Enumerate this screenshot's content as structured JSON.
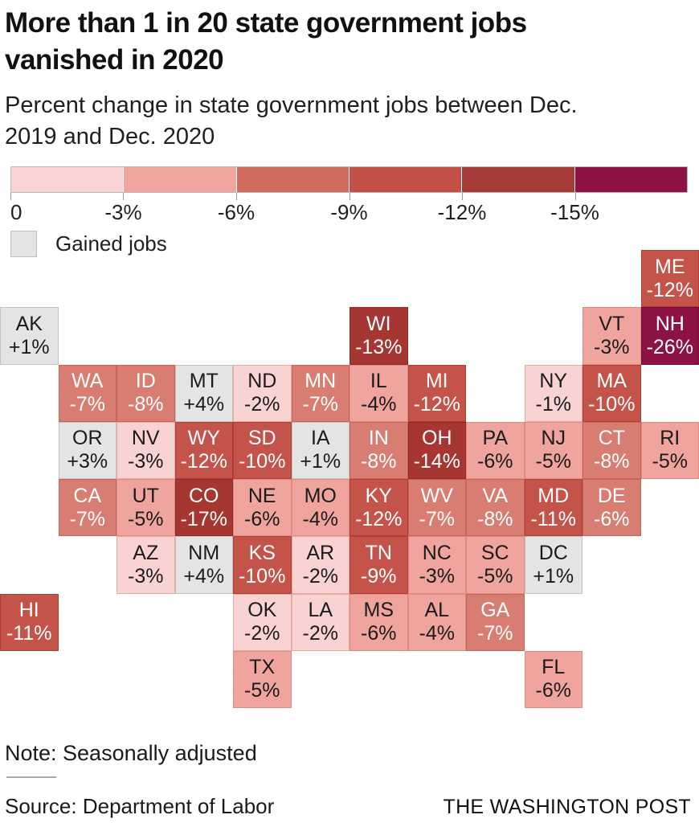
{
  "header": {
    "title": "More than 1 in 20 state government jobs\nvanished in 2020",
    "subtitle": "Percent change in state government jobs between Dec.\n2019 and Dec. 2020"
  },
  "legend": {
    "tick_labels": [
      "0",
      "-3%",
      "-6%",
      "-9%",
      "-12%",
      "-15%"
    ],
    "band_colors": [
      "#f9d4d2",
      "#f0a69f",
      "#cf6c5e",
      "#c35148",
      "#a63b37",
      "#8e1245"
    ],
    "band_ranges": [
      "0 to -3%",
      "-3% to -6%",
      "-6% to -9%",
      "-9% to -12%",
      "-12% to -15%",
      "worse than -15%"
    ],
    "gained_label": "Gained jobs",
    "gained_color": "#e4e4e4"
  },
  "palette": {
    "bands": [
      {
        "fill": "#e4e4e4",
        "border": "#c3c3c3",
        "text": "#1b1b1b"
      },
      {
        "fill": "#f8d3d1",
        "border": "#e9a8a3",
        "text": "#1b1b1b"
      },
      {
        "fill": "#efa49d",
        "border": "#e08a82",
        "text": "#1b1b1b"
      },
      {
        "fill": "#d87d72",
        "border": "#c66256",
        "text": "#ffffff"
      },
      {
        "fill": "#c4534a",
        "border": "#b03d36",
        "text": "#ffffff"
      },
      {
        "fill": "#a53632",
        "border": "#8f2a27",
        "text": "#ffffff"
      },
      {
        "fill": "#8c1144",
        "border": "#770c39",
        "text": "#ffffff"
      }
    ]
  },
  "footer": {
    "note": "Note: Seasonally adjusted",
    "source": "Source: Department of Labor",
    "credit": "THE WASHINGTON POST"
  },
  "chart_data": {
    "type": "heatmap",
    "subtype": "state-tile-grid-map",
    "title": "More than 1 in 20 state government jobs vanished in 2020",
    "value_unit": "percent change in state government jobs, Dec. 2019 to Dec. 2020",
    "grid": {
      "columns": 12,
      "rows": 8
    },
    "band_meaning": [
      "gained jobs (gray)",
      "0 to -3%",
      "-3% to -6%",
      "-6% to -9%",
      "-9% to -12%",
      "-12% to -15%",
      "worse than -15%"
    ],
    "states": [
      {
        "abbr": "ME",
        "label": "-12%",
        "value": -12,
        "row": 0,
        "col": 11,
        "band": 4
      },
      {
        "abbr": "AK",
        "label": "+1%",
        "value": 1,
        "row": 1,
        "col": 0,
        "band": 0
      },
      {
        "abbr": "WI",
        "label": "-13%",
        "value": -13,
        "row": 1,
        "col": 6,
        "band": 5
      },
      {
        "abbr": "VT",
        "label": "-3%",
        "value": -3,
        "row": 1,
        "col": 10,
        "band": 2
      },
      {
        "abbr": "NH",
        "label": "-26%",
        "value": -26,
        "row": 1,
        "col": 11,
        "band": 6
      },
      {
        "abbr": "WA",
        "label": "-7%",
        "value": -7,
        "row": 2,
        "col": 1,
        "band": 3
      },
      {
        "abbr": "ID",
        "label": "-8%",
        "value": -8,
        "row": 2,
        "col": 2,
        "band": 3
      },
      {
        "abbr": "MT",
        "label": "+4%",
        "value": 4,
        "row": 2,
        "col": 3,
        "band": 0
      },
      {
        "abbr": "ND",
        "label": "-2%",
        "value": -2,
        "row": 2,
        "col": 4,
        "band": 1
      },
      {
        "abbr": "MN",
        "label": "-7%",
        "value": -7,
        "row": 2,
        "col": 5,
        "band": 3
      },
      {
        "abbr": "IL",
        "label": "-4%",
        "value": -4,
        "row": 2,
        "col": 6,
        "band": 2
      },
      {
        "abbr": "MI",
        "label": "-12%",
        "value": -12,
        "row": 2,
        "col": 7,
        "band": 4
      },
      {
        "abbr": "NY",
        "label": "-1%",
        "value": -1,
        "row": 2,
        "col": 9,
        "band": 1
      },
      {
        "abbr": "MA",
        "label": "-10%",
        "value": -10,
        "row": 2,
        "col": 10,
        "band": 4
      },
      {
        "abbr": "OR",
        "label": "+3%",
        "value": 3,
        "row": 3,
        "col": 1,
        "band": 0
      },
      {
        "abbr": "NV",
        "label": "-3%",
        "value": -3,
        "row": 3,
        "col": 2,
        "band": 1
      },
      {
        "abbr": "WY",
        "label": "-12%",
        "value": -12,
        "row": 3,
        "col": 3,
        "band": 4
      },
      {
        "abbr": "SD",
        "label": "-10%",
        "value": -10,
        "row": 3,
        "col": 4,
        "band": 4
      },
      {
        "abbr": "IA",
        "label": "+1%",
        "value": 1,
        "row": 3,
        "col": 5,
        "band": 0
      },
      {
        "abbr": "IN",
        "label": "-8%",
        "value": -8,
        "row": 3,
        "col": 6,
        "band": 3
      },
      {
        "abbr": "OH",
        "label": "-14%",
        "value": -14,
        "row": 3,
        "col": 7,
        "band": 5
      },
      {
        "abbr": "PA",
        "label": "-6%",
        "value": -6,
        "row": 3,
        "col": 8,
        "band": 2
      },
      {
        "abbr": "NJ",
        "label": "-5%",
        "value": -5,
        "row": 3,
        "col": 9,
        "band": 2
      },
      {
        "abbr": "CT",
        "label": "-8%",
        "value": -8,
        "row": 3,
        "col": 10,
        "band": 3
      },
      {
        "abbr": "RI",
        "label": "-5%",
        "value": -5,
        "row": 3,
        "col": 11,
        "band": 2
      },
      {
        "abbr": "CA",
        "label": "-7%",
        "value": -7,
        "row": 4,
        "col": 1,
        "band": 3
      },
      {
        "abbr": "UT",
        "label": "-5%",
        "value": -5,
        "row": 4,
        "col": 2,
        "band": 2
      },
      {
        "abbr": "CO",
        "label": "-17%",
        "value": -17,
        "row": 4,
        "col": 3,
        "band": 5
      },
      {
        "abbr": "NE",
        "label": "-6%",
        "value": -6,
        "row": 4,
        "col": 4,
        "band": 2
      },
      {
        "abbr": "MO",
        "label": "-4%",
        "value": -4,
        "row": 4,
        "col": 5,
        "band": 2
      },
      {
        "abbr": "KY",
        "label": "-12%",
        "value": -12,
        "row": 4,
        "col": 6,
        "band": 4
      },
      {
        "abbr": "WV",
        "label": "-7%",
        "value": -7,
        "row": 4,
        "col": 7,
        "band": 3
      },
      {
        "abbr": "VA",
        "label": "-8%",
        "value": -8,
        "row": 4,
        "col": 8,
        "band": 3
      },
      {
        "abbr": "MD",
        "label": "-11%",
        "value": -11,
        "row": 4,
        "col": 9,
        "band": 4
      },
      {
        "abbr": "DE",
        "label": "-6%",
        "value": -6,
        "row": 4,
        "col": 10,
        "band": 3
      },
      {
        "abbr": "AZ",
        "label": "-3%",
        "value": -3,
        "row": 5,
        "col": 2,
        "band": 1
      },
      {
        "abbr": "NM",
        "label": "+4%",
        "value": 4,
        "row": 5,
        "col": 3,
        "band": 0
      },
      {
        "abbr": "KS",
        "label": "-10%",
        "value": -10,
        "row": 5,
        "col": 4,
        "band": 4
      },
      {
        "abbr": "AR",
        "label": "-2%",
        "value": -2,
        "row": 5,
        "col": 5,
        "band": 1
      },
      {
        "abbr": "TN",
        "label": "-9%",
        "value": -9,
        "row": 5,
        "col": 6,
        "band": 4
      },
      {
        "abbr": "NC",
        "label": "-3%",
        "value": -3,
        "row": 5,
        "col": 7,
        "band": 2
      },
      {
        "abbr": "SC",
        "label": "-5%",
        "value": -5,
        "row": 5,
        "col": 8,
        "band": 2
      },
      {
        "abbr": "DC",
        "label": "+1%",
        "value": 1,
        "row": 5,
        "col": 9,
        "band": 0
      },
      {
        "abbr": "HI",
        "label": "-11%",
        "value": -11,
        "row": 6,
        "col": 0,
        "band": 4
      },
      {
        "abbr": "OK",
        "label": "-2%",
        "value": -2,
        "row": 6,
        "col": 4,
        "band": 1
      },
      {
        "abbr": "LA",
        "label": "-2%",
        "value": -2,
        "row": 6,
        "col": 5,
        "band": 1
      },
      {
        "abbr": "MS",
        "label": "-6%",
        "value": -6,
        "row": 6,
        "col": 6,
        "band": 2
      },
      {
        "abbr": "AL",
        "label": "-4%",
        "value": -4,
        "row": 6,
        "col": 7,
        "band": 2
      },
      {
        "abbr": "GA",
        "label": "-7%",
        "value": -7,
        "row": 6,
        "col": 8,
        "band": 3
      },
      {
        "abbr": "TX",
        "label": "-5%",
        "value": -5,
        "row": 7,
        "col": 4,
        "band": 2
      },
      {
        "abbr": "FL",
        "label": "-6%",
        "value": -6,
        "row": 7,
        "col": 9,
        "band": 2
      }
    ]
  }
}
